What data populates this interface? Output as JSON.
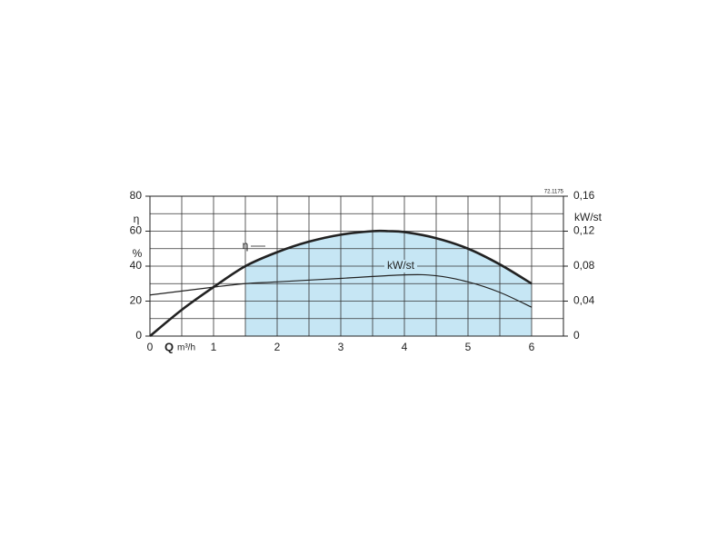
{
  "chart_data": {
    "type": "line",
    "code": "72.1175",
    "y_label": "η",
    "y_unit": "%",
    "y2_label": "kW/st",
    "x_label": "Q",
    "x_unit": "m³/h",
    "xlim": [
      0,
      6.5
    ],
    "xticks": [
      0,
      1,
      2,
      3,
      4,
      5,
      6
    ],
    "xgrid": [
      0.5,
      1.5,
      2.5,
      3.5,
      4.5,
      5.5,
      6.5
    ],
    "ylim": [
      0,
      80
    ],
    "yticks": [
      0,
      20,
      40,
      60,
      80
    ],
    "ygrid": [
      10,
      30,
      50,
      70
    ],
    "y2lim": [
      0,
      0.16
    ],
    "y2ticks": [
      0,
      {
        "value": 0.04,
        "label": "0,04"
      },
      {
        "value": 0.08,
        "label": "0,08"
      },
      {
        "value": 0.12,
        "label": "0,12"
      },
      {
        "value": 0.16,
        "label": "0,16"
      }
    ],
    "grid": true,
    "shade_x": [
      1.5,
      6
    ],
    "shade_color": "#c6e6f4",
    "series": [
      {
        "name": "η",
        "color": "#222222",
        "x": [
          0,
          0.5,
          1,
          1.5,
          2,
          2.5,
          3,
          3.5,
          3.75,
          4,
          4.5,
          5,
          5.5,
          6
        ],
        "values": [
          0,
          15,
          28,
          40,
          48,
          54,
          58,
          60,
          60,
          59.5,
          56,
          50,
          41,
          30
        ]
      },
      {
        "name": "kW/st",
        "color": "#222222",
        "axis": "y2",
        "x": [
          0,
          1,
          1.5,
          2,
          3,
          4,
          4.5,
          5,
          5.5,
          6
        ],
        "values": [
          0.047,
          0.056,
          0.06,
          0.062,
          0.066,
          0.07,
          0.069,
          0.062,
          0.05,
          0.033
        ]
      }
    ]
  }
}
